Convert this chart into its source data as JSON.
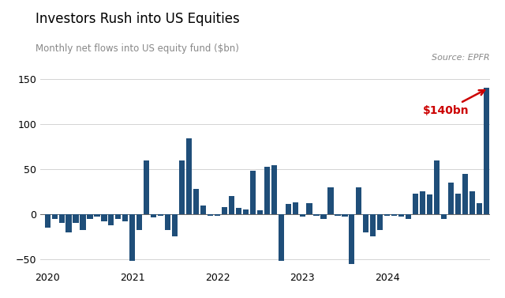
{
  "title": "Investors Rush into US Equities",
  "subtitle": "Monthly net flows into US equity fund ($bn)",
  "source": "Source: EPFR",
  "bar_color": "#1f4e79",
  "annotation_text": "$140bn",
  "annotation_color": "#cc0000",
  "ylim": [
    -60,
    165
  ],
  "yticks": [
    -50,
    0,
    50,
    100,
    150
  ],
  "values": [
    -15,
    -5,
    -10,
    -20,
    -10,
    -18,
    -5,
    -3,
    -8,
    -12,
    -5,
    -8,
    -52,
    -18,
    60,
    -4,
    -2,
    -18,
    -25,
    60,
    84,
    28,
    10,
    -2,
    -2,
    8,
    20,
    7,
    5,
    48,
    4,
    53,
    54,
    -52,
    11,
    13,
    -3,
    12,
    -2,
    -5,
    30,
    -2,
    -3,
    -55,
    30,
    -20,
    -25,
    -18,
    -2,
    -2,
    -3,
    -5,
    23,
    25,
    22,
    60,
    -5,
    35,
    23,
    45,
    25,
    12,
    140
  ],
  "year_labels": [
    "2020",
    "2021",
    "2022",
    "2023",
    "2024"
  ],
  "year_tick_positions": [
    0,
    12,
    24,
    36,
    48
  ],
  "background_color": "#ffffff"
}
